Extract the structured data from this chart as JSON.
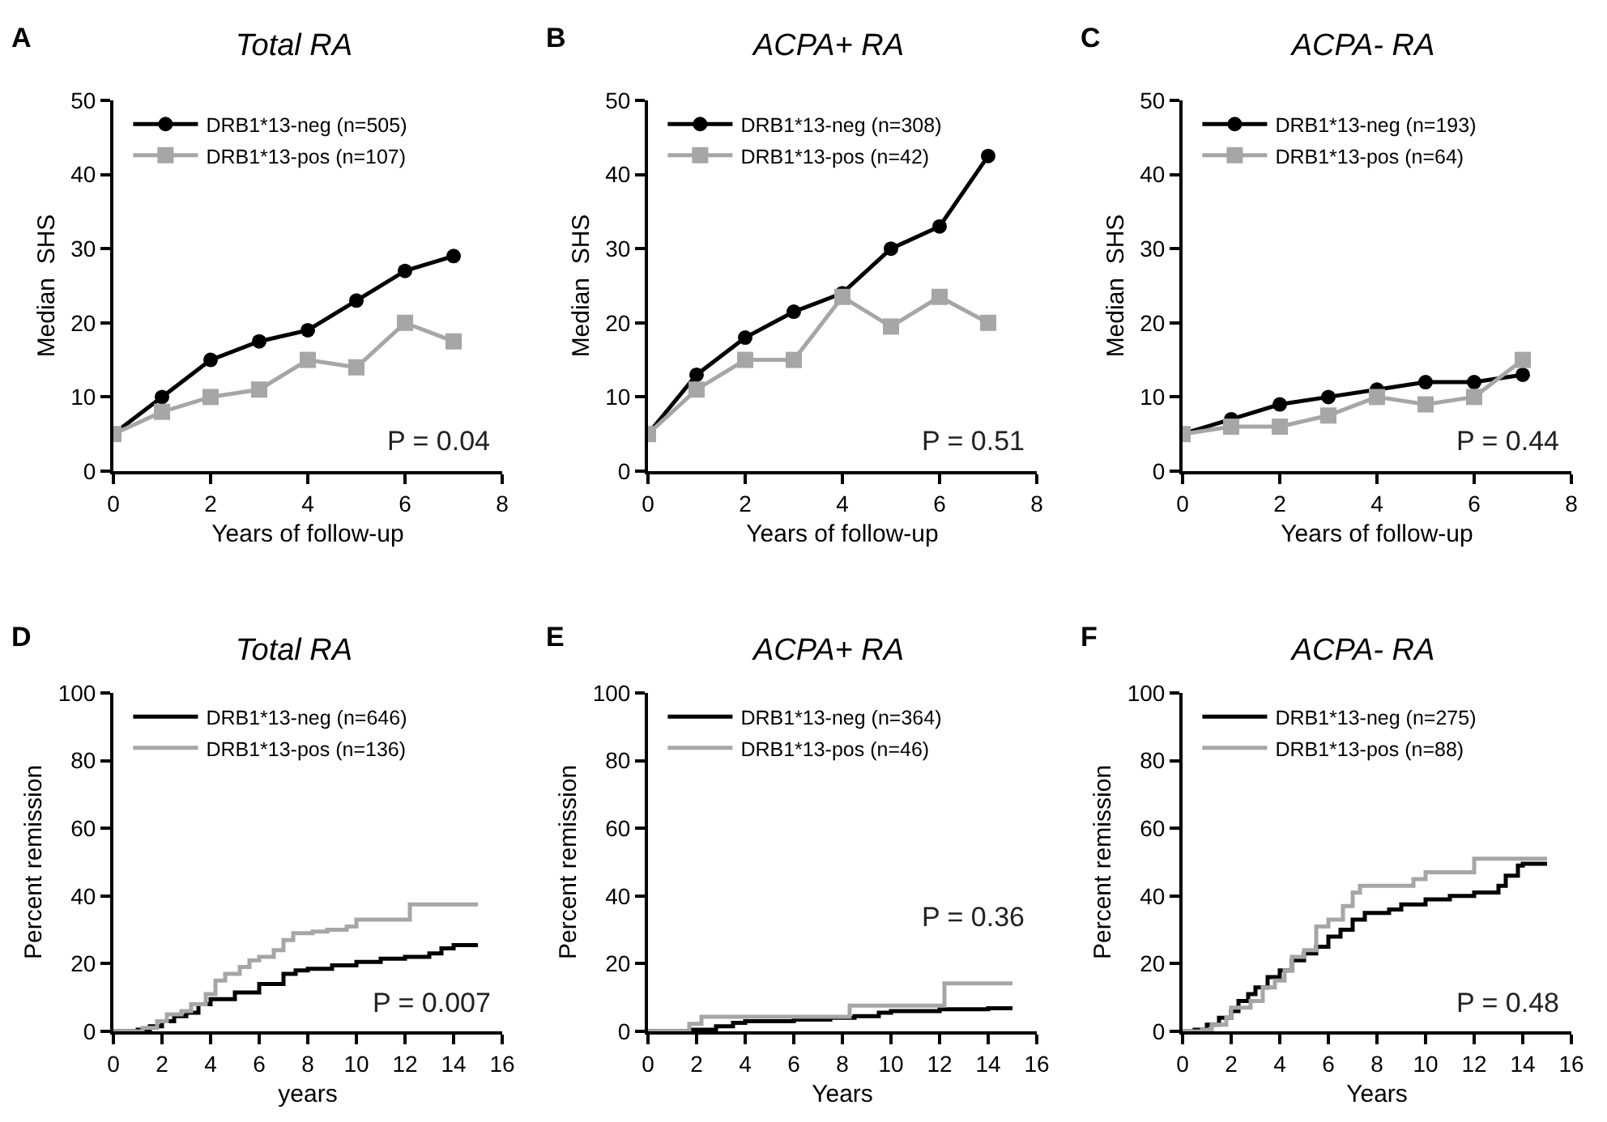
{
  "chart_data": [
    {
      "type": "line",
      "title": "Total RA",
      "xlabel": "Years of follow-up",
      "ylabel": "Median  SHS",
      "annotations": [
        "A",
        "P = 0.04"
      ],
      "x": [
        0,
        1,
        2,
        3,
        4,
        5,
        6,
        7
      ],
      "xlim": [
        0,
        8
      ],
      "xticks": [
        0,
        2,
        4,
        6,
        8
      ],
      "ylim": [
        0,
        50
      ],
      "yticks": [
        0,
        10,
        20,
        30,
        40,
        50
      ],
      "grid": false,
      "legend": "top left",
      "series": [
        {
          "name": "DRB1*13-neg (n=505)",
          "color": "#000000",
          "marker": "circle",
          "values": [
            5,
            10,
            15,
            17.5,
            19,
            23,
            27,
            29
          ]
        },
        {
          "name": "DRB1*13-pos (n=107)",
          "color": "#a6a6a6",
          "marker": "square",
          "values": [
            5,
            8,
            10,
            11,
            15,
            14,
            20,
            17.5
          ]
        }
      ]
    },
    {
      "type": "line",
      "title": "ACPA+ RA",
      "xlabel": "Years of follow-up",
      "ylabel": "Median  SHS",
      "annotations": [
        "B",
        "P = 0.51"
      ],
      "x": [
        0,
        1,
        2,
        3,
        4,
        5,
        6,
        7
      ],
      "xlim": [
        0,
        8
      ],
      "xticks": [
        0,
        2,
        4,
        6,
        8
      ],
      "ylim": [
        0,
        50
      ],
      "yticks": [
        0,
        10,
        20,
        30,
        40,
        50
      ],
      "grid": false,
      "legend": "top left",
      "series": [
        {
          "name": "DRB1*13-neg (n=308)",
          "color": "#000000",
          "marker": "circle",
          "values": [
            5,
            13,
            18,
            21.5,
            24,
            30,
            33,
            42.5
          ]
        },
        {
          "name": "DRB1*13-pos (n=42)",
          "color": "#a6a6a6",
          "marker": "square",
          "values": [
            5,
            11,
            15,
            15,
            23.5,
            19.5,
            23.5,
            20
          ]
        }
      ]
    },
    {
      "type": "line",
      "title": "ACPA- RA",
      "xlabel": "Years of follow-up",
      "ylabel": "Median  SHS",
      "annotations": [
        "C",
        "P = 0.44"
      ],
      "x": [
        0,
        1,
        2,
        3,
        4,
        5,
        6,
        7
      ],
      "xlim": [
        0,
        8
      ],
      "xticks": [
        0,
        2,
        4,
        6,
        8
      ],
      "ylim": [
        0,
        50
      ],
      "yticks": [
        0,
        10,
        20,
        30,
        40,
        50
      ],
      "grid": false,
      "legend": "top left",
      "series": [
        {
          "name": "DRB1*13-neg (n=193)",
          "color": "#000000",
          "marker": "circle",
          "values": [
            5,
            7,
            9,
            10,
            11,
            12,
            12,
            13
          ]
        },
        {
          "name": "DRB1*13-pos (n=64)",
          "color": "#a6a6a6",
          "marker": "square",
          "values": [
            5,
            6,
            6,
            7.5,
            10,
            9,
            10,
            15
          ]
        }
      ]
    },
    {
      "type": "step",
      "title": "Total RA",
      "xlabel": "years",
      "ylabel": "Percent remission",
      "annotations": [
        "D",
        "P = 0.007"
      ],
      "xlim": [
        0,
        16
      ],
      "xticks": [
        0,
        2,
        4,
        6,
        8,
        10,
        12,
        14,
        16
      ],
      "ylim": [
        0,
        100
      ],
      "yticks": [
        0,
        20,
        40,
        60,
        80,
        100
      ],
      "grid": false,
      "legend": "top left",
      "marker": "none",
      "series": [
        {
          "name": "DRB1*13-neg (n=646)",
          "color": "#000000",
          "x": [
            0,
            1,
            1.5,
            2,
            2.5,
            3,
            3.5,
            4,
            5,
            6,
            7,
            7.5,
            8,
            9,
            10,
            11,
            12,
            13,
            13.5,
            14,
            15
          ],
          "values": [
            0,
            0.5,
            1.5,
            3,
            4.5,
            5.5,
            8,
            9.5,
            11.5,
            14,
            17,
            18,
            18.5,
            19.5,
            20.5,
            21.5,
            22,
            23,
            24.5,
            25.5,
            25.5
          ]
        },
        {
          "name": "DRB1*13-pos (n=136)",
          "color": "#a6a6a6",
          "x": [
            0,
            1.2,
            1.8,
            2.2,
            2.8,
            3.2,
            3.8,
            4.2,
            4.6,
            5.2,
            5.6,
            6,
            6.6,
            7,
            7.4,
            8.2,
            8.8,
            9.6,
            10,
            11,
            12.2,
            15
          ],
          "values": [
            0,
            1,
            3,
            5,
            6,
            8,
            11,
            15,
            17,
            19,
            21,
            22,
            24,
            27,
            29,
            29.5,
            30,
            31,
            33,
            33,
            37.5,
            37.5
          ]
        }
      ]
    },
    {
      "type": "step",
      "title": "ACPA+ RA",
      "xlabel": "Years",
      "ylabel": "Percent remission",
      "annotations": [
        "E",
        "P = 0.36"
      ],
      "xlim": [
        0,
        16
      ],
      "xticks": [
        0,
        2,
        4,
        6,
        8,
        10,
        12,
        14,
        16
      ],
      "ylim": [
        0,
        100
      ],
      "yticks": [
        0,
        20,
        40,
        60,
        80,
        100
      ],
      "grid": false,
      "legend": "top left",
      "marker": "none",
      "series": [
        {
          "name": "DRB1*13-neg (n=364)",
          "color": "#000000",
          "x": [
            0,
            1.8,
            2.8,
            3.5,
            4,
            6,
            7.5,
            8.5,
            9.5,
            10,
            12,
            14,
            15
          ],
          "values": [
            0,
            0.5,
            1.5,
            2.5,
            3,
            3.5,
            4,
            4.5,
            5.5,
            6,
            6.5,
            6.8,
            6.8
          ]
        },
        {
          "name": "DRB1*13-pos (n=46)",
          "color": "#a6a6a6",
          "x": [
            0,
            1.7,
            2.2,
            8.3,
            12.2,
            15
          ],
          "values": [
            0,
            2.2,
            4.3,
            7.6,
            14.2,
            14.2
          ]
        }
      ]
    },
    {
      "type": "step",
      "title": "ACPA- RA",
      "xlabel": "Years",
      "ylabel": "Percent remission",
      "annotations": [
        "F",
        "P = 0.48"
      ],
      "xlim": [
        0,
        16
      ],
      "xticks": [
        0,
        2,
        4,
        6,
        8,
        10,
        12,
        14,
        16
      ],
      "ylim": [
        0,
        100
      ],
      "yticks": [
        0,
        20,
        40,
        60,
        80,
        100
      ],
      "grid": false,
      "legend": "top left",
      "marker": "none",
      "series": [
        {
          "name": "DRB1*13-neg (n=275)",
          "color": "#000000",
          "x": [
            0,
            0.5,
            1,
            1.5,
            2,
            2.3,
            2.7,
            3,
            3.5,
            4,
            4.5,
            5,
            5.5,
            6,
            6.5,
            7,
            7.5,
            8.5,
            9,
            10,
            11,
            12,
            13,
            13.3,
            13.8,
            14,
            15
          ],
          "values": [
            0,
            0.5,
            2,
            4,
            6,
            9,
            11,
            13,
            16,
            18,
            21,
            23,
            25,
            28,
            30,
            33,
            35,
            36,
            37.5,
            39,
            40,
            41,
            43,
            46,
            49,
            49.5,
            49.5
          ]
        },
        {
          "name": "DRB1*13-pos (n=88)",
          "color": "#a6a6a6",
          "x": [
            0,
            0.8,
            1.2,
            1.8,
            2,
            2.8,
            3.3,
            3.8,
            4.2,
            4.5,
            5,
            5.5,
            6,
            6.6,
            7,
            7.3,
            9.5,
            10,
            12,
            15
          ],
          "values": [
            0,
            0.5,
            2,
            4,
            7,
            9,
            13,
            15,
            18,
            22,
            24,
            31,
            33,
            37,
            41,
            43,
            45,
            47,
            51,
            51
          ]
        }
      ]
    }
  ]
}
